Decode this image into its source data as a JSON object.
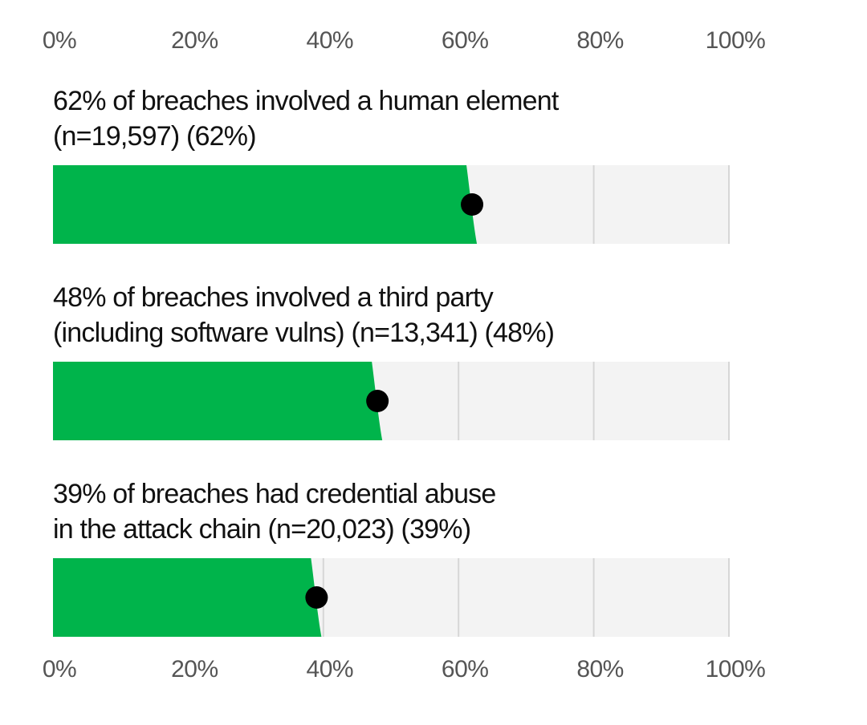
{
  "colors": {
    "fill": "#00b44b",
    "track": "#f3f3f3",
    "grid": "#d6d6d6",
    "marker": "#000000",
    "tick_text": "#555555"
  },
  "axis": {
    "ticks": [
      "0%",
      "20%",
      "40%",
      "60%",
      "80%",
      "100%"
    ]
  },
  "chart_data": {
    "type": "bar",
    "orientation": "horizontal",
    "xlim": [
      0,
      100
    ],
    "x_ticks": [
      0,
      20,
      40,
      60,
      80,
      100
    ],
    "x_tick_labels": [
      "0%",
      "20%",
      "40%",
      "60%",
      "80%",
      "100%"
    ],
    "grid": true,
    "categories": [
      "62% of breaches involved a human element (n=19,597) (62%)",
      "48% of breaches involved a third party (including software vulns) (n=13,341) (48%)",
      "39% of breaches had credential abuse in the attack chain (n=20,023) (39%)"
    ],
    "values": [
      62,
      48,
      39
    ],
    "bars": [
      {
        "line1": "62% of breaches involved a human element",
        "line2": "(n=19,597) (62%)",
        "value": 62
      },
      {
        "line1": "48% of breaches involved a third party",
        "line2": "(including software vulns) (n=13,341) (48%)",
        "value": 48
      },
      {
        "line1": "39% of breaches had credential abuse",
        "line2": "in the attack chain (n=20,023) (39%)",
        "value": 39
      }
    ]
  }
}
